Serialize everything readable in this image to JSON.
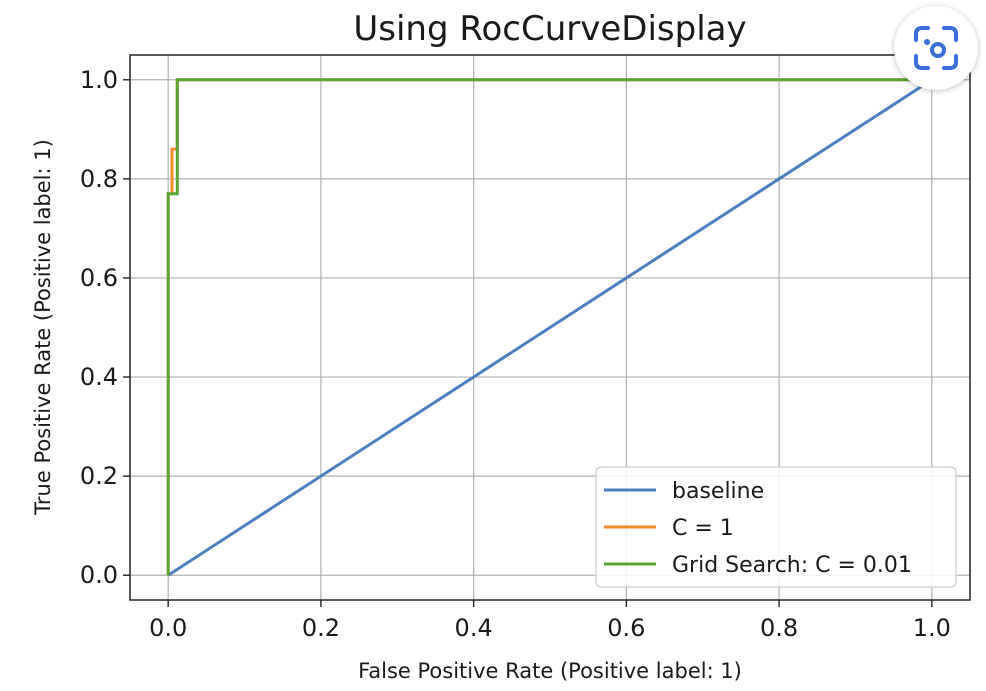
{
  "chart_data": {
    "type": "line",
    "title": "Using RocCurveDisplay",
    "xlabel": "False Positive Rate (Positive label: 1)",
    "ylabel": "True Positive Rate (Positive label: 1)",
    "xlim": [
      -0.05,
      1.05
    ],
    "ylim": [
      -0.05,
      1.05
    ],
    "xticks": [
      0.0,
      0.2,
      0.4,
      0.6,
      0.8,
      1.0
    ],
    "yticks": [
      0.0,
      0.2,
      0.4,
      0.6,
      0.8,
      1.0
    ],
    "xtick_labels": [
      "0.0",
      "0.2",
      "0.4",
      "0.6",
      "0.8",
      "1.0"
    ],
    "ytick_labels": [
      "0.0",
      "0.2",
      "0.4",
      "0.6",
      "0.8",
      "1.0"
    ],
    "grid": true,
    "legend_position": "lower-right",
    "series": [
      {
        "name": "baseline",
        "color": "#4c7fc0",
        "x": [
          0.0,
          1.0
        ],
        "y": [
          0.0,
          1.0
        ]
      },
      {
        "name": "C = 1",
        "color": "#f08a2a",
        "x": [
          0.0,
          0.0,
          0.005,
          0.005,
          0.012,
          0.012,
          1.0
        ],
        "y": [
          0.0,
          0.77,
          0.77,
          0.86,
          0.86,
          1.0,
          1.0
        ]
      },
      {
        "name": "Grid Search: C = 0.01",
        "color": "#5aa532",
        "x": [
          0.0,
          0.0,
          0.012,
          0.012,
          1.0
        ],
        "y": [
          0.0,
          0.77,
          0.77,
          1.0,
          1.0
        ]
      }
    ]
  },
  "overlay": {
    "icon": "lens-icon"
  }
}
